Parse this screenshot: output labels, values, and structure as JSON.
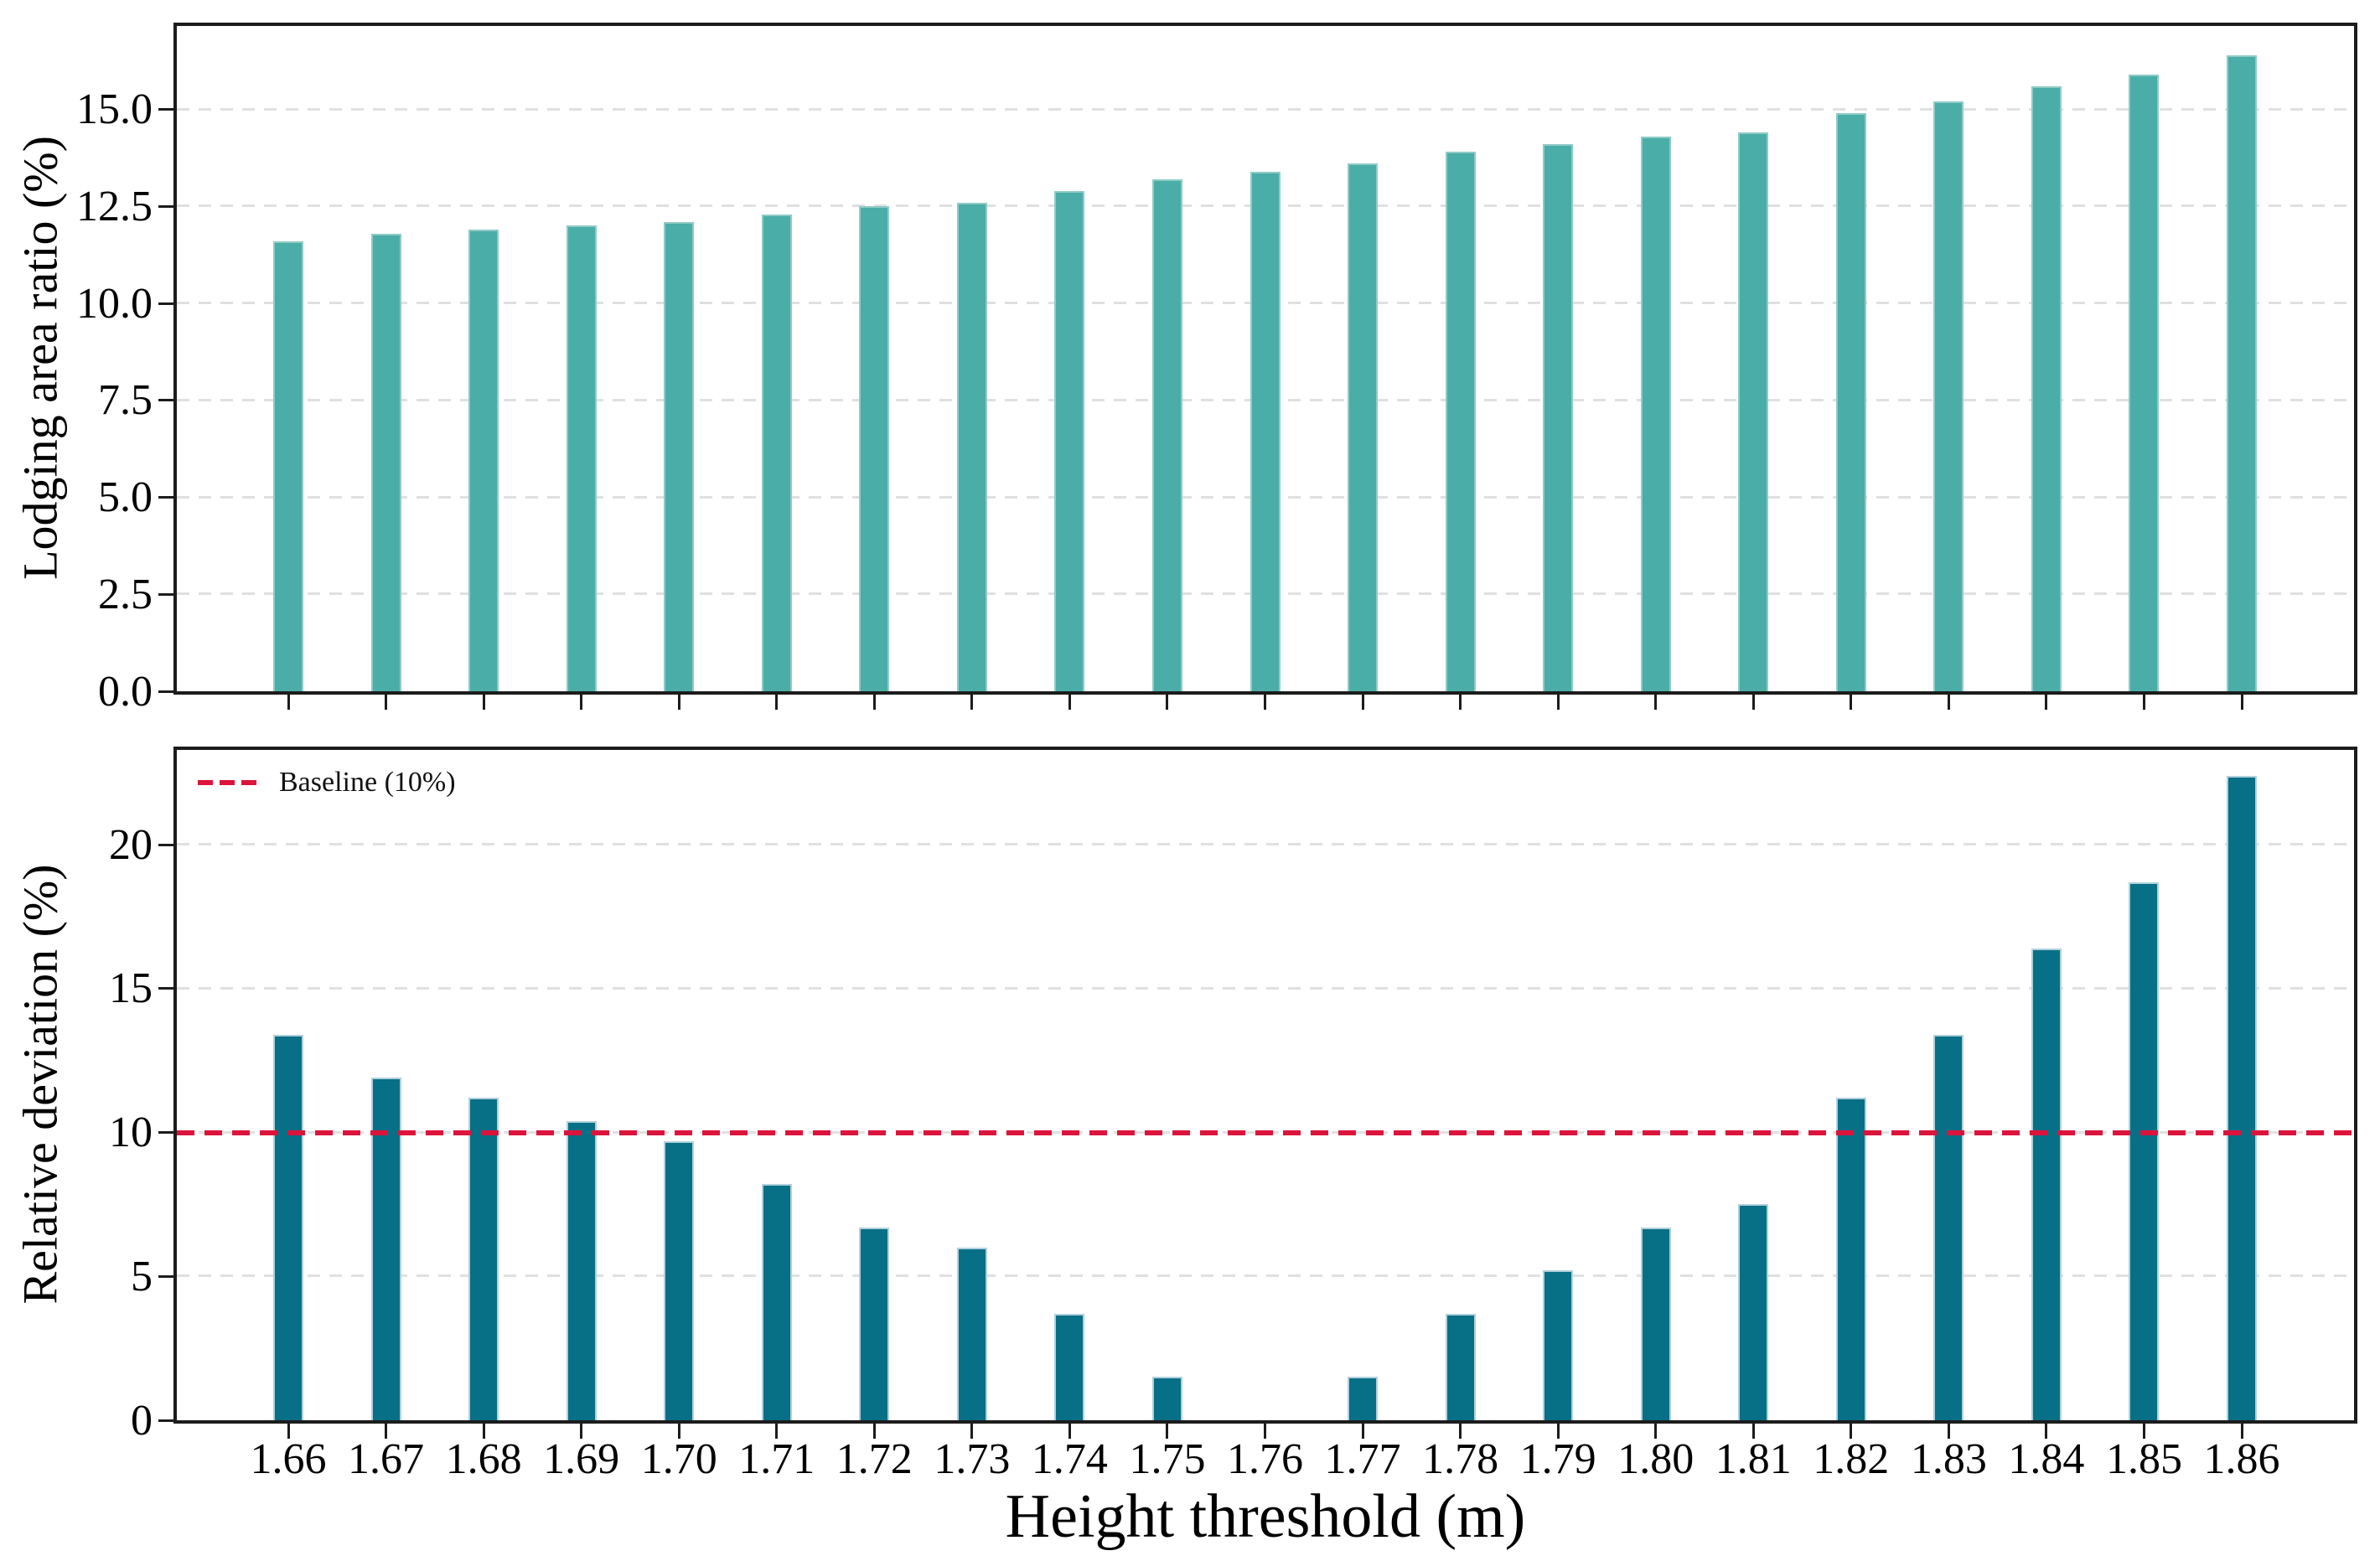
{
  "chart_data": [
    {
      "type": "bar",
      "panel": "top",
      "title": "",
      "ylabel": "Lodging area ratio (%)",
      "xlabel": "",
      "categories": [
        "1.66",
        "1.67",
        "1.68",
        "1.69",
        "1.70",
        "1.71",
        "1.72",
        "1.73",
        "1.74",
        "1.75",
        "1.76",
        "1.77",
        "1.78",
        "1.79",
        "1.80",
        "1.81",
        "1.82",
        "1.83",
        "1.84",
        "1.85",
        "1.86"
      ],
      "values": [
        11.6,
        11.8,
        11.9,
        12.0,
        12.1,
        12.3,
        12.5,
        12.6,
        12.9,
        13.2,
        13.4,
        13.6,
        13.9,
        14.1,
        14.3,
        14.4,
        14.9,
        15.2,
        15.6,
        15.9,
        16.4
      ],
      "ylim": [
        0,
        17.15
      ],
      "yticks": {
        "labels": [
          "0.0",
          "2.5",
          "5.0",
          "7.5",
          "10.0",
          "12.5",
          "15.0"
        ],
        "values": [
          0,
          2.5,
          5,
          7.5,
          10,
          12.5,
          15
        ]
      },
      "grid": true,
      "x_tick_labels_visible": false,
      "bar_color": "#4aada8",
      "bar_edge_color": "#90cbc6"
    },
    {
      "type": "bar",
      "panel": "bottom",
      "title": "",
      "ylabel": "Relative deviation (%)",
      "xlabel": "Height threshold (m)",
      "categories": [
        "1.66",
        "1.67",
        "1.68",
        "1.69",
        "1.70",
        "1.71",
        "1.72",
        "1.73",
        "1.74",
        "1.75",
        "1.76",
        "1.77",
        "1.78",
        "1.79",
        "1.80",
        "1.81",
        "1.82",
        "1.83",
        "1.84",
        "1.85",
        "1.86"
      ],
      "values": [
        13.4,
        11.9,
        11.2,
        10.4,
        9.7,
        8.2,
        6.7,
        6.0,
        3.7,
        1.5,
        0.0,
        1.5,
        3.7,
        5.2,
        6.7,
        7.5,
        11.2,
        13.4,
        16.4,
        18.7,
        22.4
      ],
      "ylim": [
        0,
        23.3
      ],
      "yticks": {
        "labels": [
          "0",
          "5",
          "10",
          "15",
          "20"
        ],
        "values": [
          0,
          5,
          10,
          15,
          20
        ]
      },
      "grid": true,
      "x_tick_labels_visible": true,
      "bar_color": "#076f86",
      "bar_edge_color": "#b0d0dc",
      "baseline": {
        "label": "Baseline (10%)",
        "value": 10,
        "color": "#dc143c",
        "style": "dashed"
      },
      "legend_position": "upper-left"
    }
  ],
  "colors": {
    "top_bar": "#4aada8",
    "bottom_bar": "#076f86",
    "baseline_red": "#dc143c",
    "grid": "#e0e0e0",
    "spine": "#1c1c1c"
  }
}
